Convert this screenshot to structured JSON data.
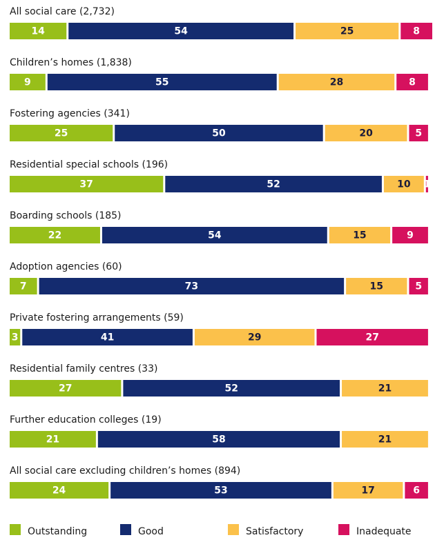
{
  "chart_data": {
    "type": "stacked-bar",
    "categories": [
      "All social care (2,732)",
      "Children’s homes (1,838)",
      "Fostering agencies (341)",
      "Residential special schools (196)",
      "Boarding schools (185)",
      "Adoption agencies (60)",
      "Private fostering arrangements (59)",
      "Residential family centres (33)",
      "Further education colleges (19)",
      "All social care excluding children’s homes (894)"
    ],
    "series": [
      {
        "name": "Outstanding",
        "color": "#98bf1a",
        "text_color": "#ffffff",
        "values": [
          14,
          9,
          25,
          37,
          22,
          7,
          3,
          27,
          21,
          24
        ]
      },
      {
        "name": "Good",
        "color": "#142b6f",
        "text_color": "#ffffff",
        "values": [
          54,
          55,
          50,
          52,
          54,
          73,
          41,
          52,
          58,
          53
        ]
      },
      {
        "name": "Satisfactory",
        "color": "#fbc14b",
        "text_color": "#1a1a3a",
        "values": [
          25,
          28,
          20,
          10,
          15,
          15,
          29,
          21,
          21,
          17
        ]
      },
      {
        "name": "Inadequate",
        "color": "#d6115e",
        "text_color": "#ffffff",
        "values": [
          8,
          8,
          5,
          1,
          9,
          5,
          27,
          null,
          null,
          6
        ]
      }
    ]
  }
}
